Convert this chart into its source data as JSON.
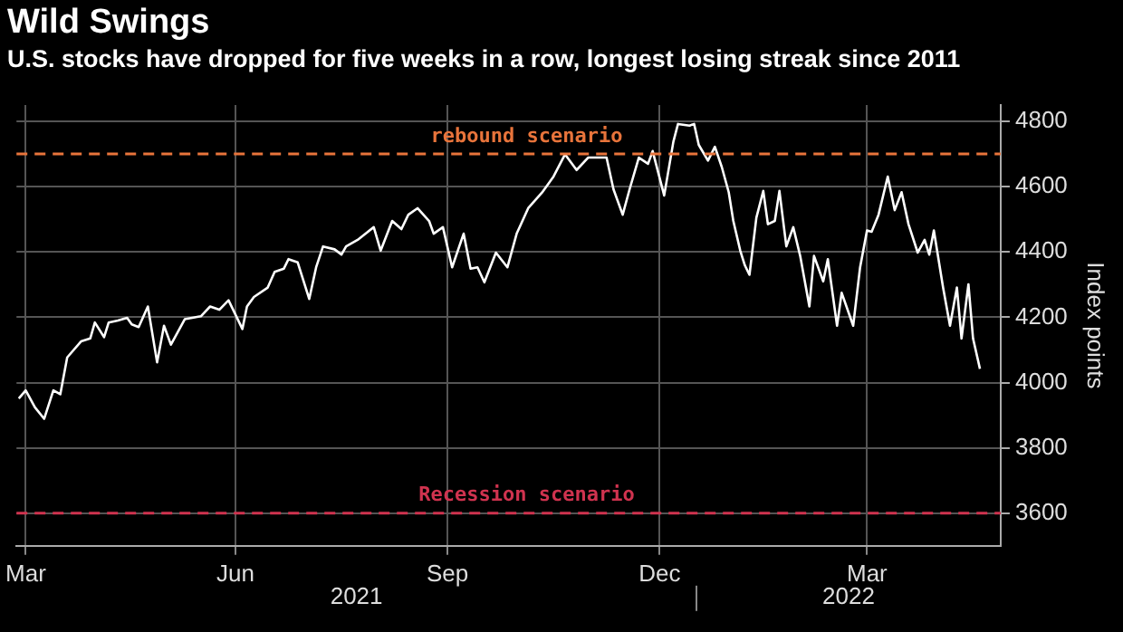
{
  "chart_data": {
    "type": "line",
    "title": "Wild Swings",
    "subtitle": "U.S. stocks have dropped for five weeks in a row, longest losing streak since 2011",
    "ylabel": "Index points",
    "x": [
      "2021-03-13",
      "2021-03-16",
      "2021-03-20",
      "2021-03-24",
      "2021-03-28",
      "2021-03-31",
      "2021-04-03",
      "2021-04-09",
      "2021-04-13",
      "2021-04-15",
      "2021-04-19",
      "2021-04-21",
      "2021-04-25",
      "2021-04-29",
      "2021-05-01",
      "2021-05-04",
      "2021-05-08",
      "2021-05-12",
      "2021-05-15",
      "2021-05-18",
      "2021-05-24",
      "2021-05-31",
      "2021-06-04",
      "2021-06-08",
      "2021-06-12",
      "2021-06-18",
      "2021-06-20",
      "2021-06-23",
      "2021-06-29",
      "2021-07-02",
      "2021-07-06",
      "2021-07-08",
      "2021-07-12",
      "2021-07-17",
      "2021-07-20",
      "2021-07-23",
      "2021-07-28",
      "2021-07-31",
      "2021-08-02",
      "2021-08-07",
      "2021-08-14",
      "2021-08-17",
      "2021-08-22",
      "2021-08-26",
      "2021-08-29",
      "2021-09-02",
      "2021-09-07",
      "2021-09-09",
      "2021-09-13",
      "2021-09-17",
      "2021-09-22",
      "2021-09-25",
      "2021-09-28",
      "2021-10-01",
      "2021-10-06",
      "2021-10-11",
      "2021-10-15",
      "2021-10-20",
      "2021-10-26",
      "2021-10-31",
      "2021-11-05",
      "2021-11-10",
      "2021-11-15",
      "2021-11-20",
      "2021-11-23",
      "2021-11-26",
      "2021-11-30",
      "2021-12-03",
      "2021-12-07",
      "2021-12-11",
      "2021-12-13",
      "2021-12-18",
      "2021-12-22",
      "2021-12-24",
      "2021-12-29",
      "2021-12-31",
      "2022-01-02",
      "2022-01-06",
      "2022-01-09",
      "2022-01-12",
      "2022-01-15",
      "2022-01-17",
      "2022-01-20",
      "2022-01-22",
      "2022-01-24",
      "2022-01-27",
      "2022-01-30",
      "2022-02-01",
      "2022-02-04",
      "2022-02-06",
      "2022-02-09",
      "2022-02-12",
      "2022-02-15",
      "2022-02-19",
      "2022-02-21",
      "2022-02-25",
      "2022-02-27",
      "2022-03-03",
      "2022-03-05",
      "2022-03-10",
      "2022-03-13",
      "2022-03-16",
      "2022-03-18",
      "2022-03-21",
      "2022-03-25",
      "2022-03-28",
      "2022-03-31",
      "2022-04-03",
      "2022-04-07",
      "2022-04-10",
      "2022-04-12",
      "2022-04-14",
      "2022-04-18",
      "2022-04-21",
      "2022-04-24",
      "2022-04-26",
      "2022-04-29",
      "2022-05-01",
      "2022-05-04"
    ],
    "series": [
      {
        "color": "#ffffff",
        "values": [
          3951,
          3976,
          3924,
          3889,
          3976,
          3964,
          4077,
          4126,
          4135,
          4184,
          4139,
          4184,
          4190,
          4198,
          4178,
          4170,
          4233,
          4062,
          4174,
          4116,
          4194,
          4203,
          4233,
          4223,
          4252,
          4164,
          4233,
          4262,
          4291,
          4339,
          4349,
          4378,
          4368,
          4256,
          4353,
          4417,
          4408,
          4392,
          4417,
          4437,
          4476,
          4404,
          4495,
          4470,
          4514,
          4534,
          4495,
          4456,
          4476,
          4353,
          4456,
          4349,
          4353,
          4307,
          4398,
          4353,
          4456,
          4534,
          4582,
          4631,
          4699,
          4651,
          4689,
          4689,
          4689,
          4592,
          4514,
          4592,
          4689,
          4670,
          4709,
          4573,
          4738,
          4792,
          4787,
          4792,
          4728,
          4680,
          4722,
          4660,
          4583,
          4495,
          4404,
          4359,
          4330,
          4505,
          4587,
          4485,
          4495,
          4587,
          4417,
          4476,
          4388,
          4233,
          4388,
          4310,
          4378,
          4174,
          4275,
          4174,
          4353,
          4466,
          4462,
          4514,
          4631,
          4528,
          4583,
          4485,
          4398,
          4437,
          4392,
          4466,
          4291,
          4174,
          4291,
          4135,
          4301,
          4135,
          4042
        ]
      }
    ],
    "xlim": [
      "2021-03-12",
      "2022-05-13"
    ],
    "xticks": [
      {
        "value": "2021-03-16",
        "label": "Mar"
      },
      {
        "value": "2021-06-15",
        "label": "Jun"
      },
      {
        "value": "2021-09-15",
        "label": "Sep"
      },
      {
        "value": "2021-12-16",
        "label": "Dec"
      },
      {
        "value": "2022-03-16",
        "label": "Mar"
      }
    ],
    "ylim": [
      3500,
      4850
    ],
    "yticks": [
      3600,
      3800,
      4000,
      4200,
      4400,
      4600,
      4800
    ],
    "ref_lines": [
      {
        "axis": "y",
        "value": 4700,
        "label": "rebound scenario",
        "color": "#e8743b",
        "line_style": "dashed"
      },
      {
        "axis": "y",
        "value": 3600,
        "label": "Recession scenario",
        "color": "#d0334f",
        "line_style": "dashed"
      }
    ],
    "annotations": [
      "2021",
      "2022"
    ],
    "grid": true,
    "legend": false,
    "marker": "none",
    "line_style": "solid"
  }
}
